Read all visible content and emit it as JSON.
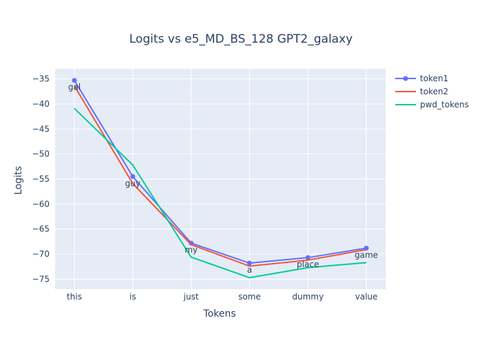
{
  "chart_data": {
    "type": "line",
    "title": "Logits vs e5_MD_BS_128 GPT2_galaxy",
    "xlabel": "Tokens",
    "ylabel": "Logits",
    "categories": [
      "this",
      "is",
      "just",
      "some",
      "dummy",
      "value"
    ],
    "ylim": [
      -77,
      -33
    ],
    "yticks": [
      -35,
      -40,
      -45,
      -50,
      -55,
      -60,
      -65,
      -70,
      -75
    ],
    "grid": true,
    "legend_position": "top-right",
    "series": [
      {
        "name": "token1",
        "values": [
          -35.3,
          -54.5,
          -67.8,
          -71.8,
          -70.7,
          -68.8
        ],
        "color": "#636efa",
        "markers": true,
        "text_labels": [
          "gal",
          "guy",
          "my",
          "a",
          "place",
          "game"
        ]
      },
      {
        "name": "token2",
        "values": [
          -36.4,
          -55.9,
          -68.1,
          -72.4,
          -71.2,
          -69.1
        ],
        "color": "#ef553b",
        "markers": false
      },
      {
        "name": "pwd_tokens",
        "values": [
          -40.9,
          -52.2,
          -70.6,
          -74.7,
          -72.7,
          -71.7
        ],
        "color": "#00cc96",
        "markers": false
      }
    ]
  }
}
